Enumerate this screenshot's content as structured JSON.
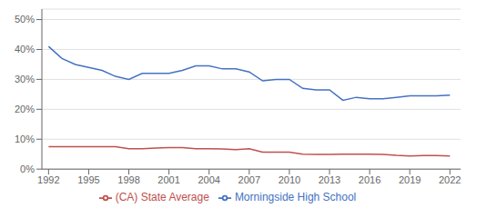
{
  "chart_data": {
    "type": "line",
    "x": [
      1992,
      1993,
      1994,
      1995,
      1996,
      1997,
      1998,
      1999,
      2000,
      2001,
      2002,
      2003,
      2004,
      2005,
      2006,
      2007,
      2008,
      2009,
      2010,
      2011,
      2012,
      2013,
      2014,
      2015,
      2016,
      2017,
      2018,
      2019,
      2020,
      2021,
      2022
    ],
    "series": [
      {
        "name": "Morningside High School",
        "color": "#4472C4",
        "values": [
          0.41,
          0.37,
          0.35,
          0.34,
          0.33,
          0.31,
          0.3,
          0.32,
          0.32,
          0.32,
          0.33,
          0.345,
          0.345,
          0.335,
          0.335,
          0.325,
          0.295,
          0.3,
          0.3,
          0.27,
          0.265,
          0.265,
          0.23,
          0.24,
          0.235,
          0.235,
          0.24,
          0.245,
          0.245,
          0.245,
          0.247
        ]
      },
      {
        "name": "(CA) State Average",
        "color": "#C0504D",
        "values": [
          0.075,
          0.075,
          0.075,
          0.075,
          0.075,
          0.075,
          0.068,
          0.068,
          0.07,
          0.072,
          0.072,
          0.068,
          0.068,
          0.067,
          0.065,
          0.068,
          0.057,
          0.057,
          0.057,
          0.05,
          0.049,
          0.049,
          0.05,
          0.05,
          0.05,
          0.049,
          0.046,
          0.044,
          0.045,
          0.045,
          0.044
        ]
      }
    ],
    "xlim": [
      1991.5,
      2022.8
    ],
    "xticks": [
      1992,
      1995,
      1998,
      2001,
      2004,
      2007,
      2010,
      2013,
      2016,
      2019,
      2022
    ],
    "ylim": [
      0.0,
      0.535
    ],
    "yticks": [
      {
        "value": 0.0,
        "label": "0%"
      },
      {
        "value": 0.1,
        "label": "10%"
      },
      {
        "value": 0.2,
        "label": "20%"
      },
      {
        "value": 0.3,
        "label": "30%"
      },
      {
        "value": 0.4,
        "label": "40%"
      },
      {
        "value": 0.5,
        "label": "50%"
      }
    ],
    "grid": "y",
    "legend": "bottom"
  }
}
